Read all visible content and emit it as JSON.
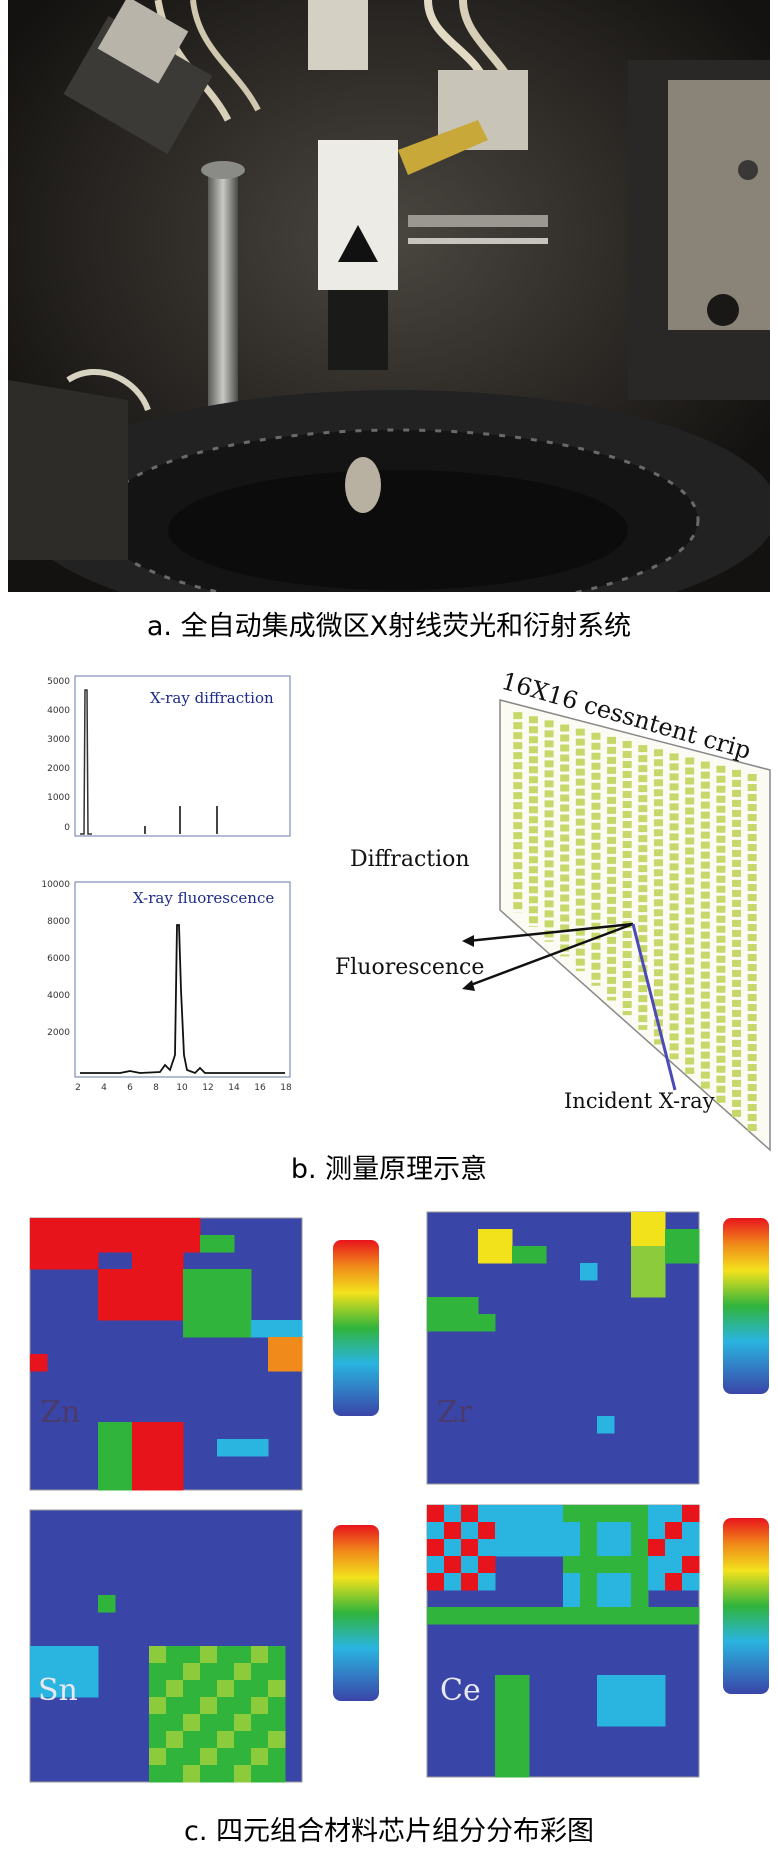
{
  "figure": {
    "panel_a": {
      "caption": "a. 全自动集成微区X射线荧光和衍射系统"
    },
    "panel_b": {
      "caption": "b. 测量原理示意",
      "diffraction_plot": {
        "label": "X-ray diffraction",
        "y_ticks": [
          "5000",
          "4000",
          "3000",
          "2000",
          "1000",
          "0"
        ]
      },
      "fluorescence_plot": {
        "label": "X-ray fluorescence",
        "y_ticks": [
          "10000",
          "8000",
          "6000",
          "4000",
          "2000"
        ],
        "x_ticks": [
          "2",
          "4",
          "6",
          "8",
          "10",
          "12",
          "14",
          "16",
          "18"
        ]
      },
      "chip": {
        "title": "16X16 cessntent crip",
        "diffraction_label": "Diffraction",
        "fluorescence_label": "Fluorescence",
        "incident_label": "Incident X-ray"
      }
    },
    "panel_c": {
      "caption": "c. 四元组合材料芯片组分分布彩图",
      "maps": [
        {
          "element": "Zn"
        },
        {
          "element": "Zr"
        },
        {
          "element": "Sn"
        },
        {
          "element": "Ce"
        }
      ],
      "colors": {
        "background": "#3a45a8",
        "red": "#e8141c",
        "orange": "#f08a1a",
        "yellow": "#f2e21c",
        "green": "#30b43c",
        "lightgreen": "#8ccc3c",
        "cyan": "#2ab4e0"
      }
    }
  }
}
